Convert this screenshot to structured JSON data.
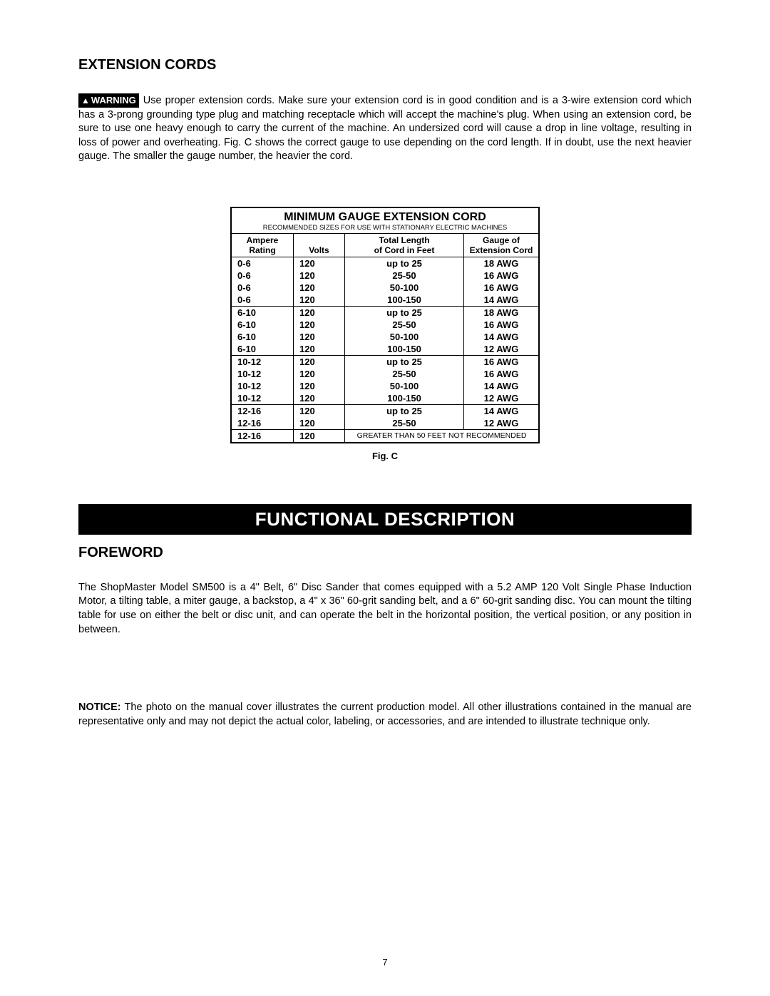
{
  "heading1": "EXTENSION CORDS",
  "warningLabel": "WARNING",
  "para1": "Use proper extension cords. Make sure your extension cord is in good condition and is a 3-wire extension cord which has a 3-prong grounding type plug and matching receptacle which will accept the machine's plug. When using an extension cord, be sure to use one heavy enough to carry the current of the machine. An undersized cord will cause a drop in line voltage, resulting in loss of power and overheating. Fig. C  shows the correct gauge to use depending on the cord length. If in doubt, use the next heavier gauge. The smaller the gauge number, the heavier the cord.",
  "tableTitle": "MINIMUM GAUGE EXTENSION CORD",
  "tableSubtitle": "RECOMMENDED SIZES FOR USE WITH STATIONARY ELECTRIC MACHINES",
  "headers": {
    "ampere1": "Ampere",
    "ampere2": "Rating",
    "volts": "Volts",
    "len1": "Total Length",
    "len2": "of Cord in Feet",
    "gauge1": "Gauge of",
    "gauge2": "Extension Cord"
  },
  "groups": [
    {
      "rows": [
        {
          "a": "0-6",
          "v": "120",
          "l": "up to 25",
          "g": "18 AWG"
        },
        {
          "a": "0-6",
          "v": "120",
          "l": "25-50",
          "g": "16 AWG"
        },
        {
          "a": "0-6",
          "v": "120",
          "l": "50-100",
          "g": "16 AWG"
        },
        {
          "a": "0-6",
          "v": "120",
          "l": "100-150",
          "g": "14 AWG"
        }
      ]
    },
    {
      "rows": [
        {
          "a": "6-10",
          "v": "120",
          "l": "up to 25",
          "g": "18 AWG"
        },
        {
          "a": "6-10",
          "v": "120",
          "l": "25-50",
          "g": "16 AWG"
        },
        {
          "a": "6-10",
          "v": "120",
          "l": "50-100",
          "g": "14 AWG"
        },
        {
          "a": "6-10",
          "v": "120",
          "l": "100-150",
          "g": "12 AWG"
        }
      ]
    },
    {
      "rows": [
        {
          "a": "10-12",
          "v": "120",
          "l": "up to 25",
          "g": "16 AWG"
        },
        {
          "a": "10-12",
          "v": "120",
          "l": "25-50",
          "g": "16 AWG"
        },
        {
          "a": "10-12",
          "v": "120",
          "l": "50-100",
          "g": "14 AWG"
        },
        {
          "a": "10-12",
          "v": "120",
          "l": "100-150",
          "g": "12 AWG"
        }
      ]
    },
    {
      "rows": [
        {
          "a": "12-16",
          "v": "120",
          "l": "up to 25",
          "g": "14 AWG"
        },
        {
          "a": "12-16",
          "v": "120",
          "l": "25-50",
          "g": "12 AWG"
        }
      ]
    }
  ],
  "lastRow": {
    "a": "12-16",
    "v": "120",
    "note": "GREATER THAN 50 FEET NOT RECOMMENDED"
  },
  "figLabel": "Fig. C",
  "blackBar": "FUNCTIONAL DESCRIPTION",
  "heading2": "FOREWORD",
  "para2": "The ShopMaster Model SM500 is a 4\" Belt, 6\" Disc Sander that comes equipped with a 5.2 AMP 120 Volt Single Phase Induction Motor, a tilting table, a miter gauge, a backstop, a 4\" x 36\" 60-grit sanding belt, and a 6\" 60-grit sanding disc. You can mount the tilting table for use on either the belt or disc unit, and can operate the belt in the horizontal position, the vertical position, or any position in between.",
  "noticeLabel": "NOTICE:",
  "noticeText": " The photo on the manual cover illustrates the current production model. All other illustrations contained in the manual are representative only and may not depict the actual color, labeling, or accessories, and are intended to illustrate technique only.",
  "pageNumber": "7"
}
